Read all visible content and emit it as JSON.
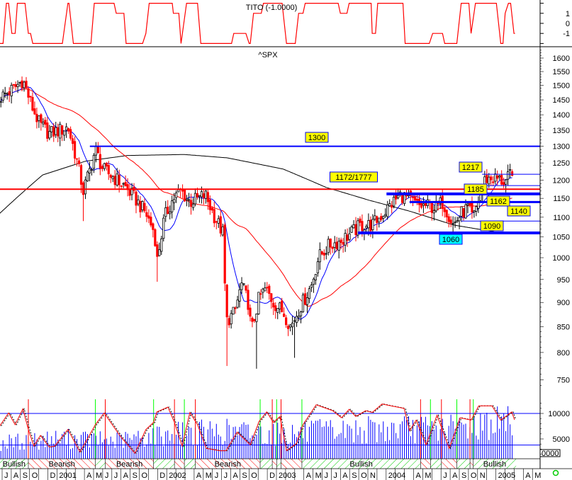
{
  "chart_data": [
    {
      "type": "line",
      "title": "TITO (-1.0000)",
      "yticks": [
        "1",
        "0",
        "-1"
      ],
      "ylim": [
        -2,
        2
      ],
      "color": "#ff0000",
      "points": [
        [
          2000.44,
          -2
        ],
        [
          2000.47,
          -2
        ],
        [
          2000.5,
          2
        ],
        [
          2000.52,
          2
        ],
        [
          2000.55,
          -1
        ],
        [
          2000.58,
          -1
        ],
        [
          2000.6,
          2
        ],
        [
          2000.67,
          2
        ],
        [
          2000.7,
          -1
        ],
        [
          2000.72,
          -1
        ],
        [
          2000.74,
          -2
        ],
        [
          2001.01,
          -2
        ],
        [
          2001.06,
          2
        ],
        [
          2001.07,
          2
        ],
        [
          2001.11,
          -2
        ],
        [
          2001.27,
          -2
        ],
        [
          2001.3,
          2
        ],
        [
          2001.48,
          2
        ],
        [
          2001.5,
          1
        ],
        [
          2001.57,
          1
        ],
        [
          2001.59,
          -2
        ],
        [
          2001.74,
          -2
        ],
        [
          2001.77,
          -1
        ],
        [
          2001.8,
          2
        ],
        [
          2002.01,
          2
        ],
        [
          2002.02,
          1
        ],
        [
          2002.07,
          1
        ],
        [
          2002.09,
          -2
        ],
        [
          2002.14,
          2
        ],
        [
          2002.24,
          2
        ],
        [
          2002.27,
          -2
        ],
        [
          2002.55,
          -2
        ],
        [
          2002.57,
          -1
        ],
        [
          2002.68,
          -1
        ],
        [
          2002.71,
          -2
        ],
        [
          2002.72,
          -2
        ],
        [
          2002.75,
          1
        ],
        [
          2002.82,
          1
        ],
        [
          2002.84,
          2
        ],
        [
          2003.01,
          2
        ],
        [
          2003.05,
          -2
        ],
        [
          2003.13,
          -2
        ],
        [
          2003.16,
          1
        ],
        [
          2003.2,
          1
        ],
        [
          2003.22,
          2
        ],
        [
          2003.52,
          2
        ],
        [
          2003.54,
          1
        ],
        [
          2003.6,
          1
        ],
        [
          2003.62,
          2
        ],
        [
          2003.82,
          2
        ],
        [
          2003.83,
          -1
        ],
        [
          2003.86,
          -1
        ],
        [
          2003.88,
          2
        ],
        [
          2004.11,
          2
        ],
        [
          2004.13,
          -2
        ],
        [
          2004.35,
          -2
        ],
        [
          2004.38,
          -1
        ],
        [
          2004.47,
          -1
        ],
        [
          2004.49,
          -2
        ],
        [
          2004.6,
          -2
        ],
        [
          2004.64,
          2
        ],
        [
          2004.71,
          2
        ],
        [
          2004.73,
          -1
        ],
        [
          2004.77,
          2
        ],
        [
          2004.96,
          2
        ],
        [
          2005.0,
          -2
        ],
        [
          2005.02,
          -2
        ],
        [
          2005.04,
          1
        ],
        [
          2005.07,
          2
        ],
        [
          2005.09,
          2
        ],
        [
          2005.12,
          -1
        ],
        [
          2005.13,
          -1
        ]
      ]
    },
    {
      "type": "candlestick",
      "title": "^SPX",
      "yscale": "log",
      "ylim": [
        720,
        1660
      ],
      "yticks": [
        "1600",
        "1550",
        "1500",
        "1450",
        "1400",
        "1350",
        "1300",
        "1250",
        "1200",
        "1150",
        "1100",
        "1050",
        "1000",
        "950",
        "900",
        "850",
        "800",
        "750"
      ],
      "up_color": "#ffffff",
      "down_color": "#ff0000",
      "closes": [
        [
          2000.45,
          1460
        ],
        [
          2000.57,
          1490
        ],
        [
          2000.65,
          1520
        ],
        [
          2000.73,
          1430
        ],
        [
          2000.8,
          1370
        ],
        [
          2000.89,
          1340
        ],
        [
          2000.99,
          1350
        ],
        [
          2001.06,
          1360
        ],
        [
          2001.14,
          1260
        ],
        [
          2001.2,
          1170
        ],
        [
          2001.27,
          1240
        ],
        [
          2001.31,
          1290
        ],
        [
          2001.38,
          1230
        ],
        [
          2001.47,
          1210
        ],
        [
          2001.57,
          1185
        ],
        [
          2001.67,
          1150
        ],
        [
          2001.77,
          1110
        ],
        [
          2001.85,
          1060
        ],
        [
          2001.87,
          990
        ],
        [
          2001.94,
          1100
        ],
        [
          2002.02,
          1150
        ],
        [
          2002.09,
          1170
        ],
        [
          2002.17,
          1140
        ],
        [
          2002.25,
          1150
        ],
        [
          2002.31,
          1160
        ],
        [
          2002.38,
          1110
        ],
        [
          2002.47,
          1060
        ],
        [
          2002.5,
          860
        ],
        [
          2002.58,
          880
        ],
        [
          2002.64,
          940
        ],
        [
          2002.7,
          900
        ],
        [
          2002.73,
          840
        ],
        [
          2002.8,
          910
        ],
        [
          2002.86,
          930
        ],
        [
          2002.93,
          900
        ],
        [
          2003.02,
          880
        ],
        [
          2003.09,
          850
        ],
        [
          2003.15,
          880
        ],
        [
          2003.22,
          910
        ],
        [
          2003.28,
          940
        ],
        [
          2003.34,
          1000
        ],
        [
          2003.44,
          1030
        ],
        [
          2003.54,
          1040
        ],
        [
          2003.64,
          1060
        ],
        [
          2003.73,
          1080
        ],
        [
          2003.83,
          1080
        ],
        [
          2003.93,
          1110
        ],
        [
          2004.02,
          1140
        ],
        [
          2004.09,
          1160
        ],
        [
          2004.15,
          1150
        ],
        [
          2004.25,
          1130
        ],
        [
          2004.34,
          1130
        ],
        [
          2004.41,
          1125
        ],
        [
          2004.47,
          1140
        ],
        [
          2004.52,
          1110
        ],
        [
          2004.57,
          1080
        ],
        [
          2004.64,
          1110
        ],
        [
          2004.7,
          1125
        ],
        [
          2004.75,
          1095
        ],
        [
          2004.8,
          1150
        ],
        [
          2004.86,
          1205
        ],
        [
          2004.96,
          1205
        ],
        [
          2005.04,
          1195
        ],
        [
          2005.09,
          1215
        ],
        [
          2005.12,
          1190
        ]
      ],
      "spike_lows": [
        [
          2001.2,
          1090
        ],
        [
          2001.87,
          945
        ],
        [
          2002.5,
          775
        ],
        [
          2002.77,
          770
        ],
        [
          2003.12,
          790
        ],
        [
          2004.57,
          1060
        ]
      ],
      "long_ma": {
        "color": "#000000",
        "points": [
          [
            2000.44,
            1110
          ],
          [
            2000.83,
            1215
          ],
          [
            2001.22,
            1255
          ],
          [
            2001.6,
            1272
          ],
          [
            2002.12,
            1275
          ],
          [
            2002.51,
            1265
          ],
          [
            2003.02,
            1232
          ],
          [
            2003.41,
            1180
          ],
          [
            2003.8,
            1145
          ],
          [
            2004.18,
            1115
          ],
          [
            2004.57,
            1080
          ],
          [
            2004.96,
            1062
          ],
          [
            2005.12,
            1060
          ]
        ]
      },
      "short_ma_color": "#0000ff",
      "mid_ma_color": "#ff0000",
      "levels": [
        {
          "value": 1300,
          "from": 2001.26,
          "color": "#0000ff",
          "label": "1300",
          "label_bg": "#ffff00"
        },
        {
          "value": 1175,
          "from": 2000.44,
          "color": "#ff0000",
          "label": "1172/1777",
          "label_bg": "#ffff00"
        },
        {
          "value": 1217,
          "from": 2004.83,
          "color": "#0000ff",
          "label": "1217",
          "label_bg": "#ffff00"
        },
        {
          "value": 1185,
          "from": 2004.83,
          "color": "#0000ff",
          "label": "1185",
          "label_bg": "#ffff00"
        },
        {
          "value": 1162,
          "from": 2003.96,
          "color": "#0000ff",
          "label": "1162",
          "label_bg": "#ffff00"
        },
        {
          "value": 1140,
          "from": 2004.17,
          "color": "#0000ff",
          "label": "1140",
          "label_bg": "#ffff00"
        },
        {
          "value": 1090,
          "from": 2004.64,
          "color": "#0000ff",
          "label": "1090",
          "label_bg": "#ffff00"
        },
        {
          "value": 1060,
          "from": 2003.7,
          "color": "#0000ff",
          "label": "1060",
          "label_bg": "#00ffff"
        }
      ]
    },
    {
      "type": "bar+line",
      "yticks": [
        "10000",
        "5000"
      ],
      "ylim": [
        0,
        13000
      ],
      "bar_color": "#0000ff",
      "levels": [
        10000,
        3800
      ],
      "volume": [
        [
          2000.44,
          4500
        ],
        [
          2001.0,
          5500
        ],
        [
          2001.5,
          5000
        ],
        [
          2002.0,
          6500
        ],
        [
          2002.5,
          7000
        ],
        [
          2003.0,
          6500
        ],
        [
          2003.5,
          7000
        ],
        [
          2004.0,
          7500
        ],
        [
          2004.5,
          7500
        ],
        [
          2005.0,
          9000
        ],
        [
          2005.13,
          9000
        ]
      ],
      "oscillator": {
        "color": "#ff0000",
        "lag_color": "#000000",
        "points": [
          [
            2000.44,
            7550
          ],
          [
            2000.52,
            10100
          ],
          [
            2000.58,
            7800
          ],
          [
            2000.65,
            10900
          ],
          [
            2000.7,
            6850
          ],
          [
            2000.75,
            3600
          ],
          [
            2000.81,
            5700
          ],
          [
            2000.89,
            3400
          ],
          [
            2000.94,
            3600
          ],
          [
            2001.06,
            6850
          ],
          [
            2001.17,
            2450
          ],
          [
            2001.31,
            7800
          ],
          [
            2001.39,
            10100
          ],
          [
            2001.54,
            5450
          ],
          [
            2001.67,
            2200
          ],
          [
            2001.77,
            6850
          ],
          [
            2001.84,
            8250
          ],
          [
            2001.87,
            10300
          ],
          [
            2001.97,
            11250
          ],
          [
            2002.03,
            8250
          ],
          [
            2002.1,
            3600
          ],
          [
            2002.17,
            10200
          ],
          [
            2002.24,
            7800
          ],
          [
            2002.32,
            3150
          ],
          [
            2002.44,
            2700
          ],
          [
            2002.5,
            2700
          ],
          [
            2002.6,
            6350
          ],
          [
            2002.72,
            3850
          ],
          [
            2002.8,
            8450
          ],
          [
            2002.87,
            10300
          ],
          [
            2002.93,
            8250
          ],
          [
            2002.99,
            9400
          ],
          [
            2003.05,
            2700
          ],
          [
            2003.14,
            4100
          ],
          [
            2003.2,
            7800
          ],
          [
            2003.32,
            11700
          ],
          [
            2003.47,
            10550
          ],
          [
            2003.55,
            9150
          ],
          [
            2003.62,
            10800
          ],
          [
            2003.68,
            9400
          ],
          [
            2003.77,
            10550
          ],
          [
            2003.83,
            10200
          ],
          [
            2003.92,
            11850
          ],
          [
            2004.0,
            11500
          ],
          [
            2004.12,
            11000
          ],
          [
            2004.17,
            6600
          ],
          [
            2004.23,
            8700
          ],
          [
            2004.32,
            3850
          ],
          [
            2004.42,
            9650
          ],
          [
            2004.53,
            3150
          ],
          [
            2004.63,
            9150
          ],
          [
            2004.73,
            8700
          ],
          [
            2004.8,
            11500
          ],
          [
            2004.92,
            11500
          ],
          [
            2005.0,
            8700
          ],
          [
            2005.1,
            10300
          ],
          [
            2005.13,
            8450
          ]
        ]
      },
      "sell_signals": [
        2000.7,
        2001.4,
        2002.03,
        2002.22,
        2002.92,
        2003.0,
        2004.27,
        2004.46,
        2004.72
      ],
      "buy_signals": [
        2001.31,
        2001.84,
        2002.12,
        2002.81,
        2002.96,
        2003.19,
        2004.36,
        2004.6,
        2004.75
      ],
      "box_text": "0000"
    }
  ],
  "regime_band": [
    {
      "from": 2000.44,
      "to": 2000.7,
      "state": "bull",
      "label": "Bullish"
    },
    {
      "from": 2000.7,
      "to": 2001.31,
      "state": "bear",
      "label": "Bearish"
    },
    {
      "from": 2001.31,
      "to": 2001.4,
      "state": "bull",
      "label": ""
    },
    {
      "from": 2001.4,
      "to": 2001.84,
      "state": "bear",
      "label": "Bearish"
    },
    {
      "from": 2001.84,
      "to": 2002.03,
      "state": "bull",
      "label": ""
    },
    {
      "from": 2002.03,
      "to": 2002.12,
      "state": "bear",
      "label": ""
    },
    {
      "from": 2002.12,
      "to": 2002.22,
      "state": "bull",
      "label": ""
    },
    {
      "from": 2002.22,
      "to": 2002.81,
      "state": "bear",
      "label": "Bearish"
    },
    {
      "from": 2002.81,
      "to": 2002.92,
      "state": "bull",
      "label": ""
    },
    {
      "from": 2002.92,
      "to": 2002.96,
      "state": "bear",
      "label": ""
    },
    {
      "from": 2002.96,
      "to": 2003.0,
      "state": "bull",
      "label": ""
    },
    {
      "from": 2003.0,
      "to": 2003.19,
      "state": "bear",
      "label": ""
    },
    {
      "from": 2003.19,
      "to": 2004.27,
      "state": "bull",
      "label": "Bullish"
    },
    {
      "from": 2004.27,
      "to": 2004.36,
      "state": "bear",
      "label": ""
    },
    {
      "from": 2004.36,
      "to": 2004.46,
      "state": "bull",
      "label": ""
    },
    {
      "from": 2004.46,
      "to": 2004.6,
      "state": "bear",
      "label": ""
    },
    {
      "from": 2004.6,
      "to": 2004.72,
      "state": "bull",
      "label": ""
    },
    {
      "from": 2004.72,
      "to": 2004.75,
      "state": "bear",
      "label": ""
    },
    {
      "from": 2004.75,
      "to": 2005.14,
      "state": "bull",
      "label": "Bullish"
    }
  ],
  "months": [
    "J",
    "A",
    "S",
    "O",
    "",
    "D",
    "2001",
    "",
    "",
    "A",
    "M",
    "J",
    "J",
    "A",
    "S",
    "O",
    "",
    "D",
    "2002",
    "",
    "",
    "A",
    "M",
    "J",
    "J",
    "A",
    "S",
    "O",
    "",
    "D",
    "2003",
    "",
    "",
    "A",
    "M",
    "J",
    "J",
    "A",
    "S",
    "O",
    "N",
    "",
    "2004",
    "",
    "",
    "A",
    "M",
    "",
    "J",
    "A",
    "S",
    "O",
    "N",
    "",
    "2005",
    "",
    "",
    "A",
    "M"
  ],
  "status": {
    "indicator_color": "#00cc00"
  }
}
